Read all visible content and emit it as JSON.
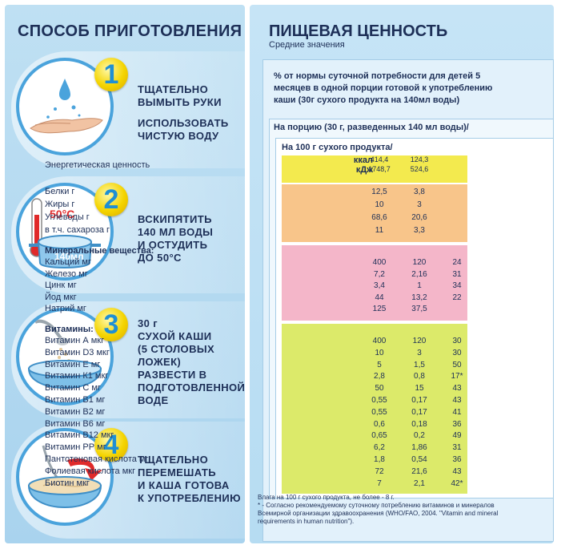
{
  "left": {
    "title": "СПОСОБ ПРИГОТОВЛЕНИЯ",
    "steps": [
      {
        "number": "1",
        "lines": [
          "ТЩАТЕЛЬНО",
          "ВЫМЫТЬ РУКИ",
          "",
          "ИСПОЛЬЗОВАТЬ",
          "ЧИСТУЮ ВОДУ"
        ]
      },
      {
        "number": "2",
        "lines": [
          "ВСКИПЯТИТЬ",
          "140 МЛ ВОДЫ",
          "И ОСТУДИТЬ",
          "ДО 50°С"
        ],
        "temp_label": "50°С",
        "volume_label": "140мл"
      },
      {
        "number": "3",
        "lines": [
          "30 г",
          "СУХОЙ КАШИ",
          "(5 СТОЛОВЫХ ЛОЖЕК)",
          "РАЗВЕСТИ В",
          "ПОДГОТОВЛЕННОЙ",
          "ВОДЕ"
        ]
      },
      {
        "number": "4",
        "lines": [
          "ТЩАТЕЛЬНО",
          "ПЕРЕМЕШАТЬ",
          "И КАША ГОТОВА",
          "К УПОТРЕБЛЕНИЮ"
        ]
      }
    ]
  },
  "right": {
    "title": "ПИЩЕВАЯ ЦЕННОСТЬ",
    "subtitle": "Средние значения",
    "intro_lines": [
      "% от нормы суточной потребности для детей 5",
      "месяцев в одной порции готовой к употреблению",
      "каши (30г сухого продукта на 140мл воды)"
    ],
    "per_portion": "На порцию (30 г, разведенных 140 мл воды)/",
    "per_100": "На 100 г сухого продукта/",
    "energy": {
      "label": "Энергетическая ценность",
      "unit1": "ккал",
      "unit2": "кДж",
      "v1a": "414,4",
      "v1b": "1748,7",
      "v2a": "124,3",
      "v2b": "524,6"
    },
    "macros": [
      {
        "label": "Белки г",
        "v1": "12,5",
        "v2": "3,8",
        "v3": ""
      },
      {
        "label": "Жиры г",
        "v1": "10",
        "v2": "3",
        "v3": ""
      },
      {
        "label": "Углеводы г",
        "v1": "68,6",
        "v2": "20,6",
        "v3": ""
      },
      {
        "label": "в т.ч. сахароза г",
        "v1": "11",
        "v2": "3,3",
        "v3": ""
      }
    ],
    "minerals_title": "Минеральные вещества:",
    "minerals": [
      {
        "label": "Кальций мг",
        "v1": "400",
        "v2": "120",
        "v3": "24"
      },
      {
        "label": "Железо мг",
        "v1": "7,2",
        "v2": "2,16",
        "v3": "31"
      },
      {
        "label": "Цинк мг",
        "v1": "3,4",
        "v2": "1",
        "v3": "34"
      },
      {
        "label": "Йод мкг",
        "v1": "44",
        "v2": "13,2",
        "v3": "22"
      },
      {
        "label": "Натрий мг",
        "v1": "125",
        "v2": "37,5",
        "v3": ""
      }
    ],
    "vitamins_title": "Витамины:",
    "vitamins": [
      {
        "label": "Витамин А мкг",
        "v1": "400",
        "v2": "120",
        "v3": "30"
      },
      {
        "label": "Витамин D3 мкг",
        "v1": "10",
        "v2": "3",
        "v3": "30"
      },
      {
        "label": "Витамин Е мг",
        "v1": "5",
        "v2": "1,5",
        "v3": "50"
      },
      {
        "label": "Витамин К1 мкг",
        "v1": "2,8",
        "v2": "0,8",
        "v3": "17*"
      },
      {
        "label": "Витамин С мг",
        "v1": "50",
        "v2": "15",
        "v3": "43"
      },
      {
        "label": "Витамин В1 мг",
        "v1": "0,55",
        "v2": "0,17",
        "v3": "43"
      },
      {
        "label": "Витамин В2 мг",
        "v1": "0,55",
        "v2": "0,17",
        "v3": "41"
      },
      {
        "label": "Витамин В6 мг",
        "v1": "0,6",
        "v2": "0,18",
        "v3": "36"
      },
      {
        "label": "Витамин В12 мкг",
        "v1": "0,65",
        "v2": "0,2",
        "v3": "49"
      },
      {
        "label": "Витамин РР мг",
        "v1": "6,2",
        "v2": "1,86",
        "v3": "31"
      },
      {
        "label": "Пантотеновая кислота мг",
        "v1": "1,8",
        "v2": "0,54",
        "v3": "36"
      },
      {
        "label": "Фолиевая кислота мкг",
        "v1": "72",
        "v2": "21,6",
        "v3": "43"
      },
      {
        "label": "Биотин мкг",
        "v1": "7",
        "v2": "2,1",
        "v3": "42*"
      }
    ],
    "footnote_lines": [
      "Влага на 100 г сухого продукта, не более - 8 г.",
      "* - Согласно рекомендуемому суточному потреблению витаминов и минералов",
      "Всемирной организации здравоохранения (WHO/FAO, 2004. \"Vitamin and mineral",
      "requirements in human nutrition\")."
    ]
  },
  "colors": {
    "title": "#1d2f57",
    "number_circle": "#f4d400",
    "number_digit": "#1f8fd4",
    "energy_bg": "#f3ea4e",
    "macros_bg": "#f8c58a",
    "minerals_bg": "#f4b6c9",
    "vitamins_bg": "#dcea6a"
  }
}
